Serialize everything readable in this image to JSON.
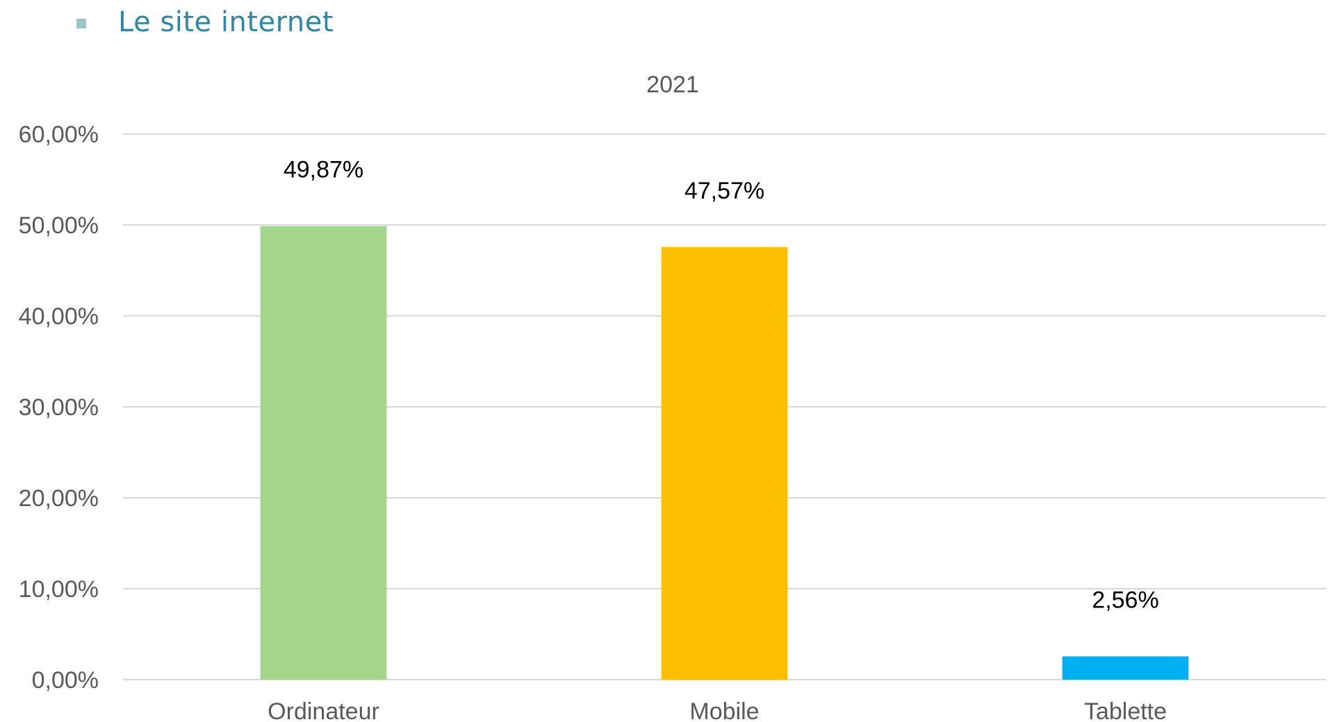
{
  "header": {
    "title": "Le site internet",
    "bullet_color": "#9cc4c4",
    "title_color": "#2e86a8"
  },
  "chart_data": {
    "type": "bar",
    "title": "2021",
    "categories": [
      "Ordinateur",
      "Mobile",
      "Tablette"
    ],
    "values": [
      49.87,
      47.57,
      2.56
    ],
    "data_labels": [
      "49,87%",
      "47,57%",
      "2,56%"
    ],
    "colors": [
      "#a3d58b",
      "#fdc000",
      "#00b0f0"
    ],
    "ylim": [
      0,
      60
    ],
    "yticks": [
      0,
      10,
      20,
      30,
      40,
      50,
      60
    ],
    "ytick_labels": [
      "0,00%",
      "10,00%",
      "20,00%",
      "30,00%",
      "40,00%",
      "50,00%",
      "60,00%"
    ],
    "xlabel": "",
    "ylabel": "",
    "grid": true,
    "gridline_color": "#d9d9d9",
    "legend": "none"
  }
}
